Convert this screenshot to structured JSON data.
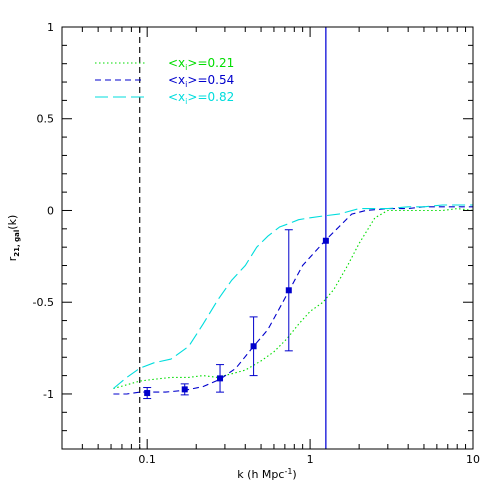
{
  "chart_data": {
    "type": "line",
    "xlabel_main": "k (h Mpc",
    "xlabel_sup": "-1",
    "xlabel_end": ")",
    "ylabel_main": "r",
    "ylabel_sub": "21, gal",
    "ylabel_end": "(k)",
    "xscale": "log",
    "xlim": [
      0.03,
      10
    ],
    "ylim": [
      -1.3,
      1
    ],
    "grid": false,
    "legend_placement": "top-left",
    "x_ticks": [
      {
        "value": 0.1,
        "label": "0.1"
      },
      {
        "value": 1,
        "label": "1"
      },
      {
        "value": 10,
        "label": "10"
      }
    ],
    "y_ticks": [
      {
        "value": 1,
        "label": "1"
      },
      {
        "value": 0.5,
        "label": "0.5"
      },
      {
        "value": 0,
        "label": "0"
      },
      {
        "value": -0.5,
        "label": "-0.5"
      },
      {
        "value": -1,
        "label": "-1"
      }
    ],
    "vertical_lines": [
      {
        "x": 0.09,
        "color": "#000000",
        "style": "dashed"
      },
      {
        "x": 1.25,
        "color": "#0000ff",
        "style": "solid"
      }
    ],
    "series": [
      {
        "name": "<x",
        "name_sub": "i",
        "name_end": ">=0.21",
        "color": "#00dd00",
        "style": "dotted",
        "x": [
          0.062,
          0.075,
          0.09,
          0.11,
          0.14,
          0.18,
          0.22,
          0.27,
          0.33,
          0.4,
          0.5,
          0.6,
          0.72,
          0.85,
          1.0,
          1.2,
          1.4,
          1.7,
          2.0,
          2.5,
          3.0,
          4.0,
          5.0,
          6.5,
          8.0,
          10.0
        ],
        "y": [
          -0.97,
          -0.95,
          -0.93,
          -0.92,
          -0.91,
          -0.91,
          -0.9,
          -0.91,
          -0.89,
          -0.87,
          -0.82,
          -0.77,
          -0.7,
          -0.62,
          -0.55,
          -0.5,
          -0.43,
          -0.3,
          -0.18,
          -0.04,
          0.0,
          0.0,
          0.0,
          0.0,
          0.01,
          0.0
        ]
      },
      {
        "name": "<x",
        "name_sub": "i",
        "name_end": ">=0.54",
        "color": "#0000cc",
        "style": "dashed",
        "x": [
          0.062,
          0.075,
          0.09,
          0.1,
          0.13,
          0.17,
          0.22,
          0.28,
          0.35,
          0.45,
          0.55,
          0.74,
          0.9,
          1.25,
          1.5,
          1.8,
          2.2,
          3.0,
          4.0,
          5.0,
          6.5,
          8.0,
          10.0
        ],
        "y": [
          -1.0,
          -1.0,
          -0.99,
          -0.99,
          -0.99,
          -0.98,
          -0.96,
          -0.92,
          -0.86,
          -0.74,
          -0.65,
          -0.44,
          -0.3,
          -0.16,
          -0.09,
          -0.02,
          0.0,
          0.01,
          0.01,
          0.02,
          0.02,
          0.02,
          0.02
        ]
      },
      {
        "name": "<x",
        "name_sub": "i",
        "name_end": ">=0.82",
        "color": "#00dddd",
        "style": "long-dashed",
        "x": [
          0.062,
          0.075,
          0.09,
          0.11,
          0.14,
          0.18,
          0.22,
          0.27,
          0.33,
          0.4,
          0.47,
          0.55,
          0.65,
          0.75,
          0.85,
          1.0,
          1.2,
          1.5,
          2.0,
          2.5,
          3.0,
          4.0,
          5.0,
          6.5,
          8.0,
          10.0
        ],
        "y": [
          -0.97,
          -0.91,
          -0.86,
          -0.83,
          -0.81,
          -0.74,
          -0.62,
          -0.49,
          -0.38,
          -0.3,
          -0.2,
          -0.14,
          -0.09,
          -0.07,
          -0.05,
          -0.04,
          -0.03,
          -0.02,
          0.01,
          0.01,
          0.01,
          0.02,
          0.02,
          0.03,
          0.03,
          0.03
        ]
      }
    ],
    "error_points": {
      "color": "#0000cc",
      "x": [
        0.1,
        0.17,
        0.28,
        0.45,
        0.74,
        1.25
      ],
      "y": [
        -0.995,
        -0.975,
        -0.915,
        -0.74,
        -0.435,
        -0.165
      ],
      "err": [
        0.03,
        0.03,
        0.075,
        0.16,
        0.33,
        1.5
      ]
    }
  }
}
